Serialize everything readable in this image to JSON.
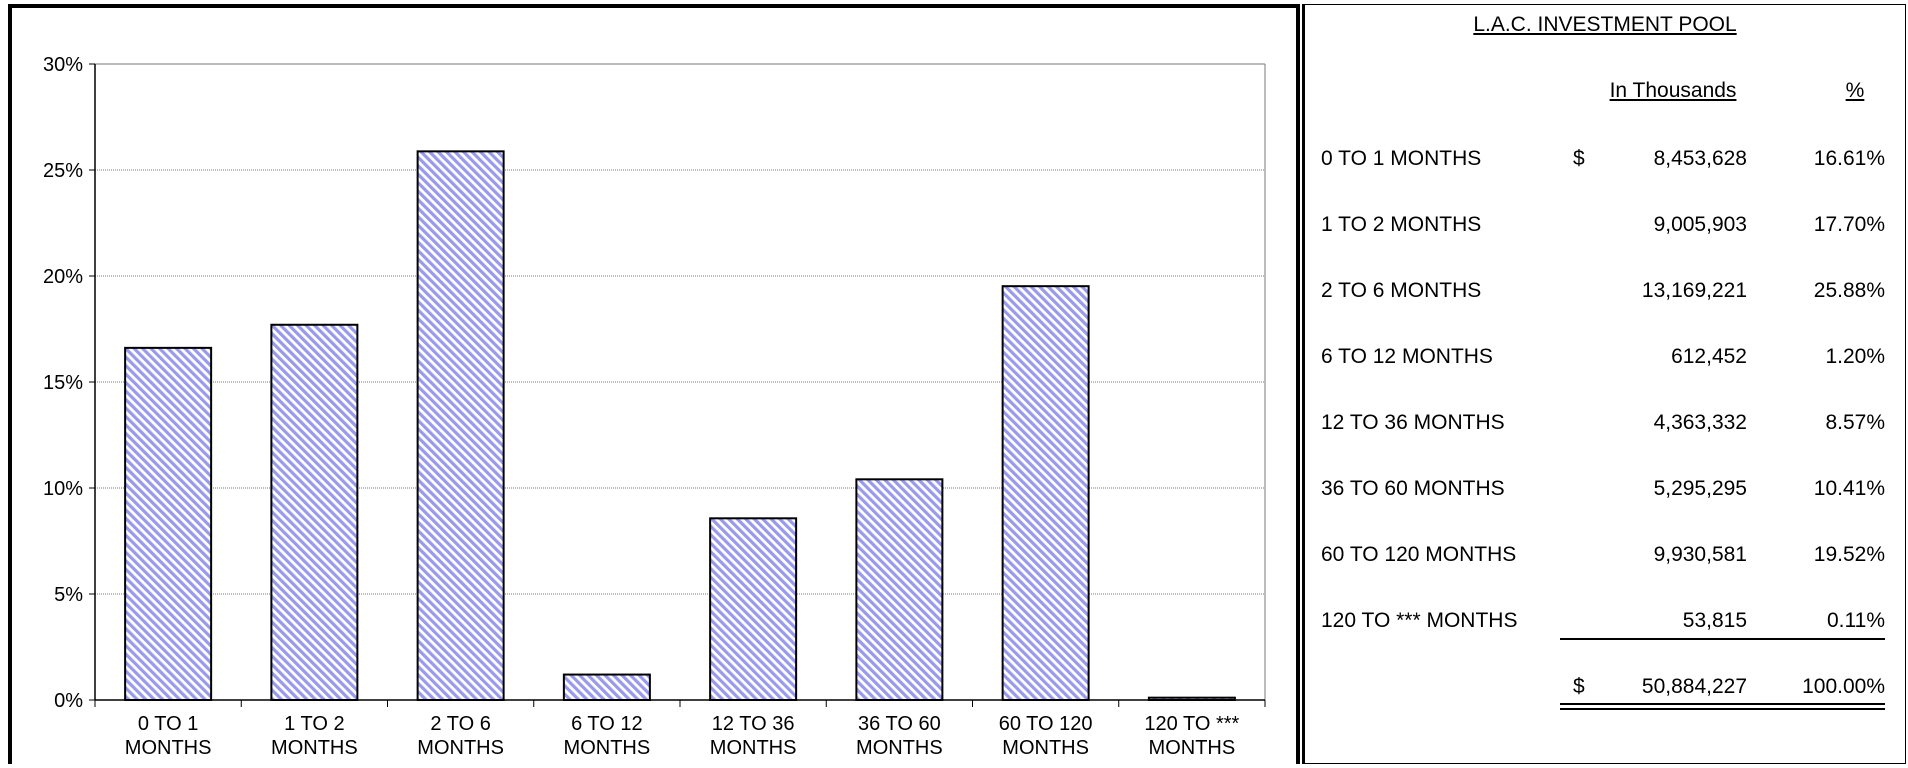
{
  "chart_data": {
    "type": "bar",
    "categories": [
      [
        "0 TO 1",
        "MONTHS"
      ],
      [
        "1 TO 2",
        "MONTHS"
      ],
      [
        "2 TO 6",
        "MONTHS"
      ],
      [
        "6 TO 12",
        "MONTHS"
      ],
      [
        "12 TO 36",
        "MONTHS"
      ],
      [
        "36 TO 60",
        "MONTHS"
      ],
      [
        "60 TO 120",
        "MONTHS"
      ],
      [
        "120 TO ***",
        "MONTHS"
      ]
    ],
    "values": [
      16.61,
      17.7,
      25.88,
      1.2,
      8.57,
      10.41,
      19.52,
      0.11
    ],
    "ylim": [
      0,
      30
    ],
    "yticks": [
      0,
      5,
      10,
      15,
      20,
      25,
      30
    ],
    "ytick_labels": [
      "0%",
      "5%",
      "10%",
      "15%",
      "20%",
      "25%",
      "30%"
    ],
    "grid": true,
    "bar_fill": "#9999ee",
    "bar_stroke": "#000000"
  },
  "table": {
    "title": "L.A.C. INVESTMENT POOL",
    "header_amount": "In Thousands",
    "header_pct": "%",
    "rows": [
      {
        "label": "0 TO 1 MONTHS",
        "currency": "$",
        "amount": "8,453,628",
        "pct": "16.61%"
      },
      {
        "label": "1 TO 2 MONTHS",
        "currency": "",
        "amount": "9,005,903",
        "pct": "17.70%"
      },
      {
        "label": "2 TO 6 MONTHS",
        "currency": "",
        "amount": "13,169,221",
        "pct": "25.88%"
      },
      {
        "label": "6 TO 12 MONTHS",
        "currency": "",
        "amount": "612,452",
        "pct": "1.20%"
      },
      {
        "label": "12 TO 36 MONTHS",
        "currency": "",
        "amount": "4,363,332",
        "pct": "8.57%"
      },
      {
        "label": "36 TO 60 MONTHS",
        "currency": "",
        "amount": "5,295,295",
        "pct": "10.41%"
      },
      {
        "label": "60 TO 120 MONTHS",
        "currency": "",
        "amount": "9,930,581",
        "pct": "19.52%"
      },
      {
        "label": "120 TO *** MONTHS",
        "currency": "",
        "amount": "53,815",
        "pct": "0.11%"
      }
    ],
    "total": {
      "currency": "$",
      "amount": "50,884,227",
      "pct": "100.00%"
    }
  }
}
